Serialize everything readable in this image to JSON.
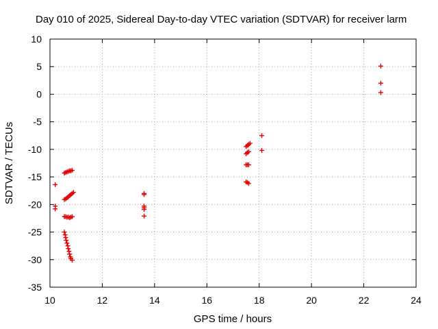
{
  "chart_data": {
    "type": "scatter",
    "title": "Day 010 of 2025, Sidereal Day-to-day VTEC variation (SDTVAR) for receiver larm",
    "xlabel": "GPS time / hours",
    "ylabel": "SDTVAR / TECUs",
    "xlim": [
      10,
      24
    ],
    "ylim": [
      -35,
      10
    ],
    "xticks": [
      10,
      12,
      14,
      16,
      18,
      20,
      22,
      24
    ],
    "yticks": [
      10,
      5,
      0,
      -5,
      -10,
      -15,
      -20,
      -25,
      -30,
      -35
    ],
    "grid": true,
    "marker": "+",
    "color": "#e00000",
    "series": [
      {
        "name": "SDTVAR",
        "points": [
          [
            10.2,
            -16.4
          ],
          [
            10.2,
            -20.3
          ],
          [
            10.2,
            -20.8
          ],
          [
            10.55,
            -14.3
          ],
          [
            10.6,
            -14.2
          ],
          [
            10.65,
            -14.1
          ],
          [
            10.7,
            -14.0
          ],
          [
            10.75,
            -13.9
          ],
          [
            10.8,
            -13.9
          ],
          [
            10.85,
            -13.8
          ],
          [
            10.55,
            -19.1
          ],
          [
            10.6,
            -19.0
          ],
          [
            10.65,
            -18.8
          ],
          [
            10.7,
            -18.6
          ],
          [
            10.75,
            -18.4
          ],
          [
            10.8,
            -18.2
          ],
          [
            10.85,
            -18.0
          ],
          [
            10.9,
            -17.8
          ],
          [
            10.55,
            -22.2
          ],
          [
            10.6,
            -22.2
          ],
          [
            10.65,
            -22.3
          ],
          [
            10.7,
            -22.3
          ],
          [
            10.75,
            -22.4
          ],
          [
            10.8,
            -22.3
          ],
          [
            10.85,
            -22.2
          ],
          [
            10.55,
            -25.0
          ],
          [
            10.58,
            -25.5
          ],
          [
            10.6,
            -26.0
          ],
          [
            10.62,
            -26.5
          ],
          [
            10.65,
            -27.0
          ],
          [
            10.68,
            -27.5
          ],
          [
            10.7,
            -28.0
          ],
          [
            10.73,
            -28.5
          ],
          [
            10.75,
            -29.0
          ],
          [
            10.78,
            -29.5
          ],
          [
            10.8,
            -29.8
          ],
          [
            10.85,
            -30.1
          ],
          [
            13.6,
            -18.0
          ],
          [
            13.6,
            -18.2
          ],
          [
            13.6,
            -20.3
          ],
          [
            13.6,
            -20.6
          ],
          [
            13.6,
            -20.9
          ],
          [
            13.6,
            -22.1
          ],
          [
            17.5,
            -9.5
          ],
          [
            17.55,
            -9.3
          ],
          [
            17.6,
            -9.1
          ],
          [
            17.65,
            -8.9
          ],
          [
            17.5,
            -10.8
          ],
          [
            17.55,
            -10.6
          ],
          [
            17.6,
            -10.4
          ],
          [
            17.5,
            -12.8
          ],
          [
            17.55,
            -12.8
          ],
          [
            17.6,
            -12.8
          ],
          [
            17.5,
            -15.9
          ],
          [
            17.55,
            -16.0
          ],
          [
            17.6,
            -16.2
          ],
          [
            18.1,
            -7.5
          ],
          [
            18.1,
            -10.2
          ],
          [
            22.65,
            5.1
          ],
          [
            22.65,
            2.0
          ],
          [
            22.65,
            0.3
          ]
        ]
      }
    ]
  }
}
